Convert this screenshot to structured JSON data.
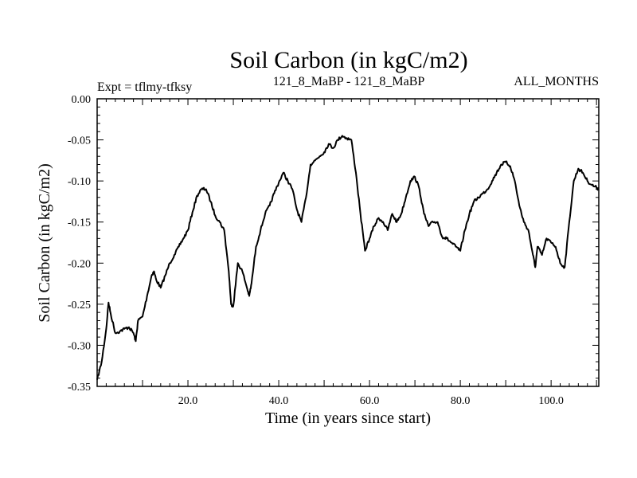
{
  "chart_data": {
    "type": "line",
    "title": "Soil Carbon (in kgC/m2)",
    "subtitle_left": "Expt = tflmy-tfksy",
    "subtitle_center": "121_8_MaBP - 121_8_MaBP",
    "subtitle_right": "ALL_MONTHS",
    "xlabel": "Time (in years since start)",
    "ylabel": "Soil Carbon (in kgC/m2)",
    "xlim": [
      0,
      110.5
    ],
    "ylim": [
      -0.35,
      0.0
    ],
    "x_ticks": [
      20,
      40,
      60,
      80,
      100
    ],
    "x_tick_labels": [
      "20.0",
      "40.0",
      "60.0",
      "80.0",
      "100.0"
    ],
    "y_ticks": [
      0.0,
      -0.05,
      -0.1,
      -0.15,
      -0.2,
      -0.25,
      -0.3,
      -0.35
    ],
    "y_tick_labels": [
      "0.00",
      "-0.05",
      "-0.10",
      "-0.15",
      "-0.20",
      "-0.25",
      "-0.30",
      "-0.35"
    ],
    "series": [
      {
        "name": "Soil Carbon",
        "x": [
          0,
          1,
          2,
          2.5,
          3,
          4,
          5,
          6,
          7,
          8,
          8.5,
          9,
          10,
          11,
          12,
          12.5,
          13,
          14,
          15,
          16,
          17,
          18,
          19,
          20,
          21,
          22,
          23,
          24,
          25,
          26,
          27,
          28,
          29,
          29.5,
          30,
          31,
          32,
          33,
          33.5,
          34,
          35,
          36,
          37,
          38,
          39,
          40,
          41,
          42,
          43,
          44,
          45,
          46,
          47,
          48,
          49,
          50,
          51,
          52,
          53,
          54,
          55,
          56,
          57,
          58,
          59,
          60,
          61,
          62,
          63,
          64,
          65,
          66,
          67,
          68,
          69,
          70,
          71,
          72,
          73,
          74,
          75,
          76,
          77,
          78,
          79,
          80,
          81,
          82,
          83,
          84,
          85,
          86,
          87,
          88,
          89,
          90,
          91,
          92,
          93,
          94,
          95,
          96,
          96.5,
          97,
          98,
          99,
          100,
          101,
          102,
          103,
          104,
          105,
          106,
          107,
          108,
          109,
          110,
          110.5
        ],
        "y": [
          -0.342,
          -0.32,
          -0.28,
          -0.248,
          -0.262,
          -0.285,
          -0.283,
          -0.28,
          -0.278,
          -0.285,
          -0.295,
          -0.27,
          -0.265,
          -0.24,
          -0.215,
          -0.21,
          -0.22,
          -0.23,
          -0.215,
          -0.2,
          -0.19,
          -0.18,
          -0.17,
          -0.16,
          -0.138,
          -0.118,
          -0.11,
          -0.11,
          -0.125,
          -0.142,
          -0.15,
          -0.16,
          -0.21,
          -0.25,
          -0.252,
          -0.2,
          -0.21,
          -0.23,
          -0.24,
          -0.225,
          -0.18,
          -0.16,
          -0.14,
          -0.13,
          -0.115,
          -0.102,
          -0.09,
          -0.1,
          -0.11,
          -0.135,
          -0.15,
          -0.12,
          -0.08,
          -0.075,
          -0.07,
          -0.065,
          -0.055,
          -0.06,
          -0.05,
          -0.045,
          -0.048,
          -0.05,
          -0.09,
          -0.14,
          -0.185,
          -0.17,
          -0.155,
          -0.145,
          -0.15,
          -0.16,
          -0.14,
          -0.15,
          -0.14,
          -0.12,
          -0.1,
          -0.095,
          -0.11,
          -0.14,
          -0.155,
          -0.15,
          -0.15,
          -0.168,
          -0.17,
          -0.175,
          -0.18,
          -0.185,
          -0.16,
          -0.14,
          -0.125,
          -0.12,
          -0.115,
          -0.11,
          -0.1,
          -0.09,
          -0.08,
          -0.077,
          -0.082,
          -0.1,
          -0.13,
          -0.15,
          -0.16,
          -0.19,
          -0.205,
          -0.18,
          -0.19,
          -0.17,
          -0.175,
          -0.18,
          -0.2,
          -0.205,
          -0.15,
          -0.1,
          -0.085,
          -0.09,
          -0.1,
          -0.105,
          -0.108,
          -0.11
        ]
      }
    ]
  }
}
